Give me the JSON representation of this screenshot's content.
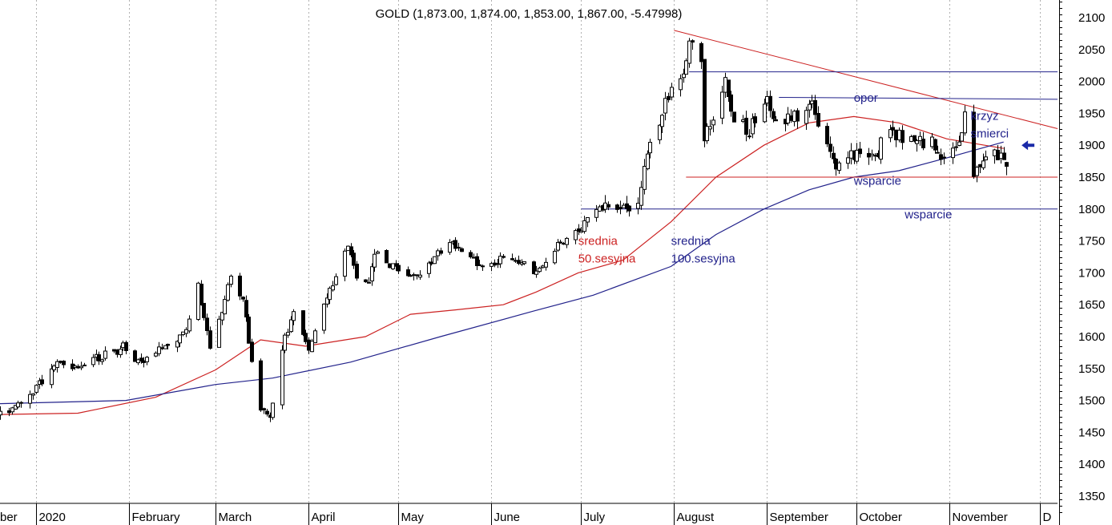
{
  "chart_data": {
    "type": "candlestick",
    "title": "GOLD (1,873.00, 1,874.00, 1,853.00, 1,867.00, -5.47998)",
    "y_ticks": [
      1350,
      1400,
      1450,
      1500,
      1550,
      1600,
      1650,
      1700,
      1750,
      1800,
      1850,
      1900,
      1950,
      2000,
      2050,
      2100
    ],
    "ylim": [
      1325,
      2125
    ],
    "x_start": "2019-12-20",
    "x_end": "2020-12-07",
    "months": [
      {
        "label": "ber",
        "date": "2019-12-01"
      },
      {
        "label": "2020",
        "date": "2020-01-01"
      },
      {
        "label": "February",
        "date": "2020-02-01"
      },
      {
        "label": "March",
        "date": "2020-03-01"
      },
      {
        "label": "April",
        "date": "2020-04-01"
      },
      {
        "label": "May",
        "date": "2020-05-01"
      },
      {
        "label": "June",
        "date": "2020-06-01"
      },
      {
        "label": "July",
        "date": "2020-07-01"
      },
      {
        "label": "August",
        "date": "2020-08-01"
      },
      {
        "label": "September",
        "date": "2020-09-01"
      },
      {
        "label": "October",
        "date": "2020-10-01"
      },
      {
        "label": "November",
        "date": "2020-11-01"
      },
      {
        "label": "D",
        "date": "2020-12-01"
      }
    ],
    "keypoints": [
      [
        "2019-12-20",
        1476
      ],
      [
        "2019-12-31",
        1517
      ],
      [
        "2020-01-08",
        1560
      ],
      [
        "2020-01-15",
        1555
      ],
      [
        "2020-01-31",
        1585
      ],
      [
        "2020-02-05",
        1555
      ],
      [
        "2020-02-20",
        1610
      ],
      [
        "2020-02-24",
        1680
      ],
      [
        "2020-02-28",
        1585
      ],
      [
        "2020-03-06",
        1690
      ],
      [
        "2020-03-10",
        1660
      ],
      [
        "2020-03-12",
        1590
      ],
      [
        "2020-03-16",
        1490
      ],
      [
        "2020-03-19",
        1475
      ],
      [
        "2020-03-24",
        1600
      ],
      [
        "2020-03-27",
        1635
      ],
      [
        "2020-04-01",
        1585
      ],
      [
        "2020-04-06",
        1650
      ],
      [
        "2020-04-08",
        1670
      ],
      [
        "2020-04-14",
        1740
      ],
      [
        "2020-04-17",
        1695
      ],
      [
        "2020-04-21",
        1690
      ],
      [
        "2020-04-23",
        1730
      ],
      [
        "2020-05-01",
        1700
      ],
      [
        "2020-05-06",
        1690
      ],
      [
        "2020-05-14",
        1730
      ],
      [
        "2020-05-18",
        1750
      ],
      [
        "2020-05-22",
        1735
      ],
      [
        "2020-05-28",
        1715
      ],
      [
        "2020-06-04",
        1720
      ],
      [
        "2020-06-10",
        1720
      ],
      [
        "2020-06-16",
        1700
      ],
      [
        "2020-06-22",
        1740
      ],
      [
        "2020-06-30",
        1765
      ],
      [
        "2020-07-08",
        1805
      ],
      [
        "2020-07-15",
        1800
      ],
      [
        "2020-07-20",
        1815
      ],
      [
        "2020-07-24",
        1900
      ],
      [
        "2020-07-28",
        1955
      ],
      [
        "2020-08-04",
        2020
      ],
      [
        "2020-08-06",
        2065
      ],
      [
        "2020-08-10",
        2030
      ],
      [
        "2020-08-11",
        1915
      ],
      [
        "2020-08-13",
        1925
      ],
      [
        "2020-08-18",
        2010
      ],
      [
        "2020-08-21",
        1940
      ],
      [
        "2020-08-26",
        1925
      ],
      [
        "2020-09-01",
        1970
      ],
      [
        "2020-09-04",
        1935
      ],
      [
        "2020-09-10",
        1945
      ],
      [
        "2020-09-16",
        1960
      ],
      [
        "2020-09-21",
        1910
      ],
      [
        "2020-09-24",
        1865
      ],
      [
        "2020-09-30",
        1885
      ],
      [
        "2020-10-07",
        1885
      ],
      [
        "2020-10-12",
        1925
      ],
      [
        "2020-10-19",
        1905
      ],
      [
        "2020-10-26",
        1905
      ],
      [
        "2020-10-30",
        1880
      ],
      [
        "2020-11-04",
        1910
      ],
      [
        "2020-11-06",
        1950
      ],
      [
        "2020-11-09",
        1860
      ],
      [
        "2020-11-13",
        1885
      ],
      [
        "2020-11-18",
        1880
      ],
      [
        "2020-11-20",
        1873
      ]
    ],
    "last_bar": {
      "date": "2020-11-20",
      "open": 1873.0,
      "high": 1874.0,
      "low": 1853.0,
      "close": 1867.0
    },
    "ma50": [
      [
        "2019-12-20",
        1478
      ],
      [
        "2020-01-15",
        1480
      ],
      [
        "2020-02-10",
        1505
      ],
      [
        "2020-03-01",
        1548
      ],
      [
        "2020-03-16",
        1595
      ],
      [
        "2020-03-31",
        1585
      ],
      [
        "2020-04-20",
        1600
      ],
      [
        "2020-05-05",
        1635
      ],
      [
        "2020-05-20",
        1642
      ],
      [
        "2020-06-05",
        1650
      ],
      [
        "2020-06-16",
        1670
      ],
      [
        "2020-06-30",
        1700
      ],
      [
        "2020-07-15",
        1720
      ],
      [
        "2020-07-31",
        1780
      ],
      [
        "2020-08-15",
        1850
      ],
      [
        "2020-08-31",
        1900
      ],
      [
        "2020-09-15",
        1935
      ],
      [
        "2020-09-30",
        1945
      ],
      [
        "2020-10-15",
        1935
      ],
      [
        "2020-10-31",
        1910
      ],
      [
        "2020-11-19",
        1895
      ]
    ],
    "ma100": [
      [
        "2019-12-20",
        1495
      ],
      [
        "2020-01-31",
        1500
      ],
      [
        "2020-03-01",
        1525
      ],
      [
        "2020-03-20",
        1535
      ],
      [
        "2020-04-15",
        1560
      ],
      [
        "2020-05-15",
        1600
      ],
      [
        "2020-06-15",
        1640
      ],
      [
        "2020-07-05",
        1665
      ],
      [
        "2020-07-31",
        1710
      ],
      [
        "2020-08-15",
        1760
      ],
      [
        "2020-08-31",
        1800
      ],
      [
        "2020-09-15",
        1830
      ],
      [
        "2020-09-30",
        1850
      ],
      [
        "2020-10-15",
        1860
      ],
      [
        "2020-10-31",
        1880
      ],
      [
        "2020-11-19",
        1905
      ]
    ],
    "lines": [
      {
        "name": "downtrend",
        "color": "#cc2222",
        "from": [
          "2020-08-01",
          2080
        ],
        "to": [
          "2020-12-07",
          1926
        ]
      },
      {
        "name": "resistance-2015",
        "color": "#22228b",
        "from": [
          "2020-08-06",
          2015
        ],
        "to": [
          "2020-12-07",
          2015
        ]
      },
      {
        "name": "opor",
        "color": "#22228b",
        "from": [
          "2020-09-05",
          1975
        ],
        "to": [
          "2020-12-07",
          1972
        ]
      },
      {
        "name": "wsparcie-1850",
        "color": "#cc2222",
        "from": [
          "2020-08-05",
          1850
        ],
        "to": [
          "2020-12-07",
          1850
        ]
      },
      {
        "name": "wsparcie-1800",
        "color": "#22228b",
        "from": [
          "2020-07-01",
          1800
        ],
        "to": [
          "2020-12-07",
          1800
        ]
      }
    ],
    "annotations": [
      {
        "text": "opor",
        "date": "2020-09-30",
        "value": 1968,
        "color": "#22228b"
      },
      {
        "text": "krzyz",
        "date": "2020-11-08",
        "value": 1940,
        "color": "#22228b"
      },
      {
        "text": "smierci",
        "date": "2020-11-08",
        "value": 1912,
        "color": "#22228b"
      },
      {
        "text": "wsparcie",
        "date": "2020-09-30",
        "value": 1838,
        "color": "#22228b"
      },
      {
        "text": "wsparcie",
        "date": "2020-10-17",
        "value": 1785,
        "color": "#22228b"
      },
      {
        "text": "srednia",
        "date": "2020-06-30",
        "value": 1744,
        "color": "#cc2222"
      },
      {
        "text": "50.sesyjna",
        "date": "2020-06-30",
        "value": 1716,
        "color": "#cc2222"
      },
      {
        "text": "srednia",
        "date": "2020-07-31",
        "value": 1744,
        "color": "#22228b"
      },
      {
        "text": "100.sesyjna",
        "date": "2020-07-31",
        "value": 1716,
        "color": "#22228b"
      }
    ],
    "arrow": {
      "date": "2020-11-25",
      "value": 1900,
      "color": "#1a2aa8"
    },
    "colors": {
      "up": "#ffffff",
      "down": "#000000",
      "ma50": "#cc2222",
      "ma100": "#22228b",
      "grid": "#b0b0b0"
    }
  }
}
